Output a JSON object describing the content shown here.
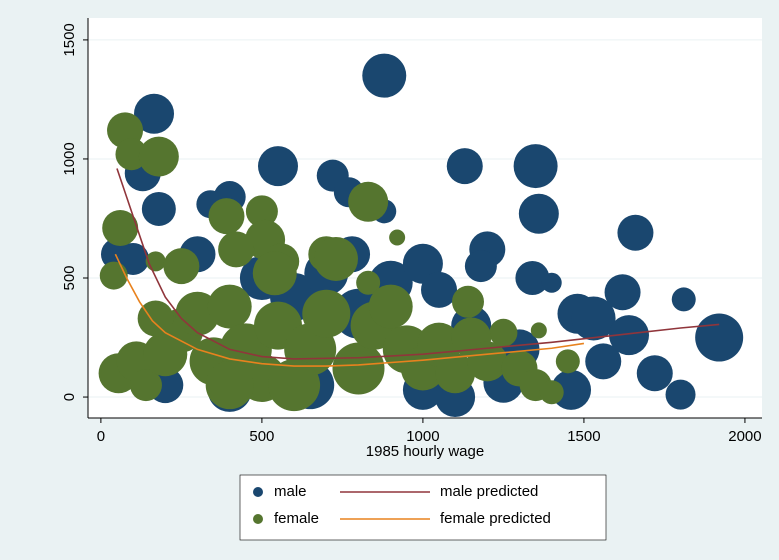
{
  "chart_data": {
    "type": "scatter",
    "x_label": "1985 hourly wage",
    "xlim": [
      -40,
      2053
    ],
    "ylim": [
      -88,
      1592
    ],
    "xticks": [
      0,
      500,
      1000,
      1500,
      2000
    ],
    "yticks": [
      0,
      500,
      1000,
      1500
    ],
    "grid": true,
    "legend": "bottom",
    "series": [
      {
        "name": "male",
        "type": "scatter",
        "color": "#1a476f",
        "x": [
          165,
          880,
          550,
          1130,
          1350,
          130,
          180,
          400,
          340,
          720,
          770,
          1360,
          1660,
          1200,
          1180,
          1340,
          1620,
          1810,
          1920,
          1400,
          1480,
          1530,
          1640,
          1560,
          1720,
          1800,
          1460,
          1100,
          1000,
          500,
          600,
          700,
          900,
          1000,
          1050,
          800,
          300,
          50,
          100,
          200,
          1300,
          1250,
          1150,
          650,
          400,
          880,
          780
        ],
        "values": [
          1190,
          1350,
          970,
          970,
          970,
          940,
          790,
          840,
          810,
          930,
          860,
          770,
          690,
          620,
          550,
          500,
          440,
          410,
          250,
          480,
          350,
          330,
          260,
          150,
          100,
          10,
          30,
          0,
          30,
          500,
          420,
          520,
          480,
          560,
          450,
          350,
          600,
          600,
          580,
          50,
          200,
          60,
          300,
          50,
          30,
          780,
          600
        ],
        "sizes": [
          20,
          22,
          20,
          18,
          22,
          18,
          17,
          16,
          14,
          16,
          15,
          20,
          18,
          18,
          16,
          17,
          18,
          12,
          24,
          10,
          20,
          22,
          20,
          18,
          18,
          15,
          20,
          20,
          20,
          22,
          24,
          22,
          22,
          20,
          18,
          25,
          18,
          16,
          16,
          18,
          20,
          20,
          20,
          24,
          22,
          12,
          18
        ]
      },
      {
        "name": "female",
        "type": "scatter",
        "color": "#55752f",
        "x": [
          75,
          95,
          180,
          60,
          40,
          170,
          250,
          390,
          500,
          510,
          560,
          540,
          700,
          730,
          420,
          830,
          920,
          830,
          1140,
          1360,
          1250,
          55,
          110,
          140,
          250,
          350,
          300,
          400,
          450,
          500,
          550,
          650,
          700,
          800,
          850,
          900,
          950,
          1000,
          1050,
          1100,
          1150,
          1200,
          1300,
          1350,
          1400,
          1450,
          600,
          400,
          200,
          170
        ],
        "values": [
          1120,
          1020,
          1010,
          710,
          510,
          570,
          550,
          760,
          780,
          660,
          570,
          520,
          600,
          580,
          620,
          820,
          670,
          480,
          400,
          280,
          270,
          100,
          150,
          50,
          280,
          150,
          350,
          380,
          200,
          80,
          300,
          200,
          350,
          120,
          300,
          380,
          200,
          120,
          220,
          100,
          250,
          150,
          120,
          50,
          20,
          150,
          50,
          50,
          180,
          330
        ],
        "sizes": [
          18,
          16,
          20,
          18,
          14,
          10,
          18,
          18,
          16,
          20,
          18,
          22,
          18,
          22,
          18,
          20,
          8,
          12,
          16,
          8,
          14,
          20,
          20,
          16,
          22,
          24,
          22,
          22,
          26,
          24,
          24,
          26,
          24,
          26,
          24,
          22,
          24,
          22,
          22,
          20,
          20,
          20,
          18,
          16,
          12,
          12,
          26,
          24,
          22,
          18
        ]
      },
      {
        "name": "male predicted",
        "type": "line",
        "color": "#90353b",
        "x": [
          50,
          100,
          150,
          200,
          250,
          300,
          400,
          500,
          600,
          800,
          1000,
          1200,
          1400,
          1600,
          1800,
          1920
        ],
        "values": [
          960,
          760,
          560,
          420,
          330,
          270,
          200,
          170,
          160,
          165,
          180,
          205,
          230,
          260,
          290,
          305
        ]
      },
      {
        "name": "female predicted",
        "type": "line",
        "color": "#e8821e",
        "x": [
          45,
          80,
          120,
          160,
          200,
          300,
          400,
          500,
          600,
          700,
          800,
          1000,
          1200,
          1400,
          1500
        ],
        "values": [
          600,
          500,
          400,
          320,
          270,
          200,
          160,
          140,
          130,
          130,
          135,
          155,
          180,
          205,
          225
        ]
      }
    ]
  }
}
